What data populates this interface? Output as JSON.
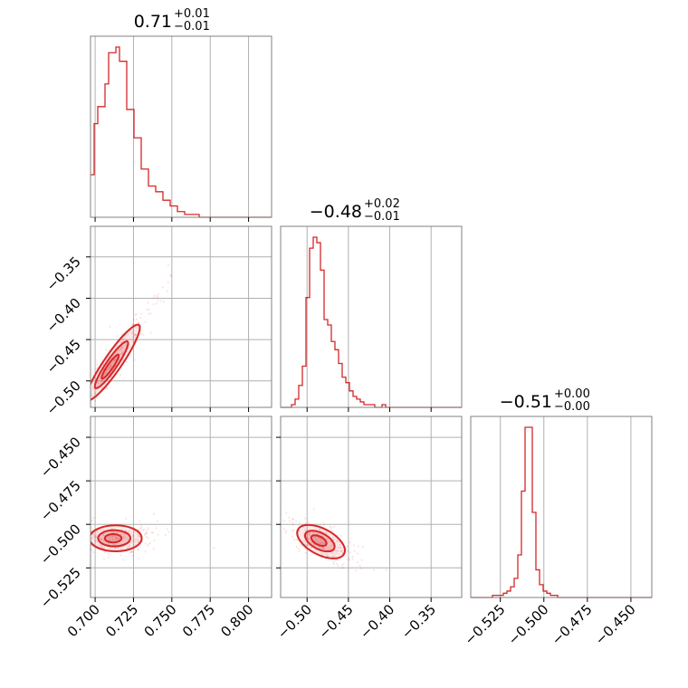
{
  "chart_data": {
    "type": "corner",
    "parameters": [
      {
        "title_value": "0.71",
        "title_plus": "+0.01",
        "title_minus": "−0.01",
        "range": [
          0.697,
          0.815
        ],
        "ticks": [
          0.7,
          0.725,
          0.75,
          0.775,
          0.8
        ],
        "tick_labels": [
          "0.700",
          "0.725",
          "0.750",
          "0.775",
          "0.800"
        ],
        "hist_edges": [
          0.697,
          0.8165
        ],
        "hist_counts": [
          15,
          33,
          39,
          39,
          47,
          58,
          58,
          60,
          55,
          55,
          38,
          38,
          28,
          28,
          17,
          17,
          11,
          11,
          9,
          9,
          6,
          6,
          4,
          4,
          2,
          2,
          1,
          1,
          1,
          1,
          0,
          0,
          0,
          0,
          0,
          0,
          0,
          0,
          0,
          0,
          0,
          0,
          0,
          0,
          0,
          0,
          0,
          0,
          0,
          0
        ]
      },
      {
        "title_value": "−0.48",
        "title_plus": "+0.02",
        "title_minus": "−0.01",
        "range": [
          -0.532,
          -0.313
        ],
        "ticks": [
          -0.5,
          -0.45,
          -0.4,
          -0.35
        ],
        "tick_labels": [
          "−0.50",
          "−0.45",
          "−0.40",
          "−0.35"
        ],
        "hist_edges": [
          -0.532,
          -0.313
        ],
        "hist_counts": [
          0,
          0,
          0,
          1,
          3,
          8,
          15,
          40,
          58,
          62,
          60,
          50,
          32,
          30,
          24,
          21,
          16,
          11,
          9,
          6,
          4,
          3,
          2,
          1,
          1,
          1,
          0,
          0,
          1,
          0,
          0,
          0,
          0,
          0,
          0,
          0,
          0,
          0,
          0,
          0,
          0,
          0,
          0,
          0,
          0,
          0,
          0,
          0,
          0,
          0
        ]
      },
      {
        "title_value": "−0.51",
        "title_plus": "+0.00",
        "title_minus": "−0.00",
        "range": [
          -0.542,
          -0.438
        ],
        "ticks": [
          -0.525,
          -0.5,
          -0.475,
          -0.45
        ],
        "tick_labels": [
          "−0.525",
          "−0.500",
          "−0.475",
          "−0.450"
        ],
        "hist_edges": [
          -0.542,
          -0.438
        ],
        "hist_counts": [
          0,
          0,
          0,
          0,
          0,
          0,
          1,
          1,
          1,
          2,
          3,
          5,
          9,
          20,
          50,
          80,
          80,
          40,
          13,
          6,
          3,
          2,
          1,
          1,
          0,
          0,
          0,
          0,
          0,
          0,
          0,
          0,
          0,
          0,
          0,
          0,
          0,
          0,
          0,
          0,
          0,
          0,
          0,
          0,
          0,
          0,
          0,
          0,
          0,
          0
        ]
      }
    ],
    "pair_contours": [
      {
        "x": 0,
        "y": 1,
        "center": [
          0.709,
          -0.485
        ],
        "slope": 2.7
      },
      {
        "x": 0,
        "y": 2,
        "center": [
          0.711,
          -0.508
        ],
        "slope": 0.0
      },
      {
        "x": 1,
        "y": 2,
        "center": [
          -0.487,
          -0.509
        ],
        "slope": -0.25
      }
    ],
    "grid": true,
    "color": "#d62728"
  }
}
